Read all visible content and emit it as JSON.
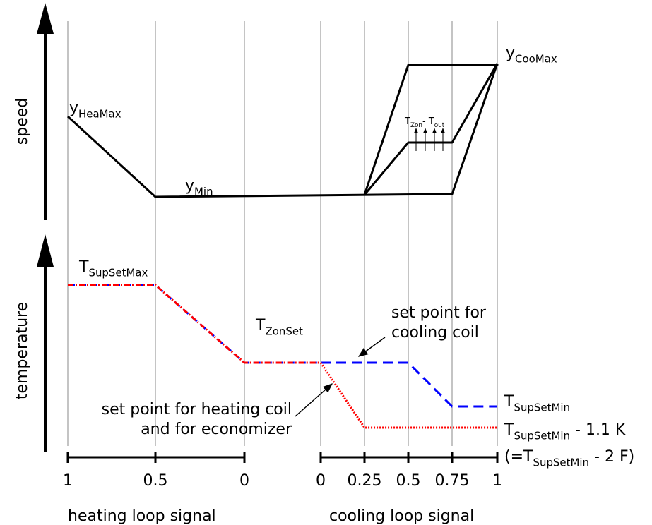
{
  "speed_axis_label": "speed",
  "temperature_axis_label": "temperature",
  "speed_labels": [
    {
      "parts": [
        {
          "text": "y"
        },
        {
          "text": "HeaMax",
          "sub": true
        }
      ]
    },
    {
      "parts": [
        {
          "text": "y"
        },
        {
          "text": "Min",
          "sub": true
        }
      ]
    },
    {
      "parts": [
        {
          "text": "y"
        },
        {
          "text": "CooMax",
          "sub": true
        }
      ]
    },
    {
      "parts": [
        {
          "text": "T"
        },
        {
          "text": "Zon",
          "sub": true
        },
        {
          "text": "- T"
        },
        {
          "text": "out",
          "sub": true
        }
      ]
    }
  ],
  "temperature_labels": [
    {
      "parts": [
        {
          "text": "T"
        },
        {
          "text": "SupSetMax",
          "sub": true
        }
      ]
    },
    {
      "parts": [
        {
          "text": "T"
        },
        {
          "text": "ZonSet",
          "sub": true
        }
      ]
    },
    {
      "parts": [
        {
          "text": "T"
        },
        {
          "text": "SupSetMin",
          "sub": true
        }
      ]
    },
    {
      "parts": [
        {
          "text": "T"
        },
        {
          "text": "SupSetMin",
          "sub": true
        },
        {
          "text": " - 1.1 K"
        }
      ]
    },
    {
      "parts": [
        {
          "text": "(=T"
        },
        {
          "text": "SupSetMin",
          "sub": true
        },
        {
          "text": " - 2 F)"
        }
      ]
    }
  ],
  "annotations": [
    {
      "lines": [
        "set point for",
        "cooling coil"
      ]
    },
    {
      "lines": [
        "set point for heating coil",
        "and for economizer"
      ]
    }
  ],
  "heating_axis": {
    "title": "heating loop signal",
    "ticks": [
      1,
      0.5,
      0
    ]
  },
  "cooling_axis": {
    "title": "cooling loop signal",
    "ticks": [
      0,
      0.25,
      0.5,
      0.75,
      1
    ]
  }
}
